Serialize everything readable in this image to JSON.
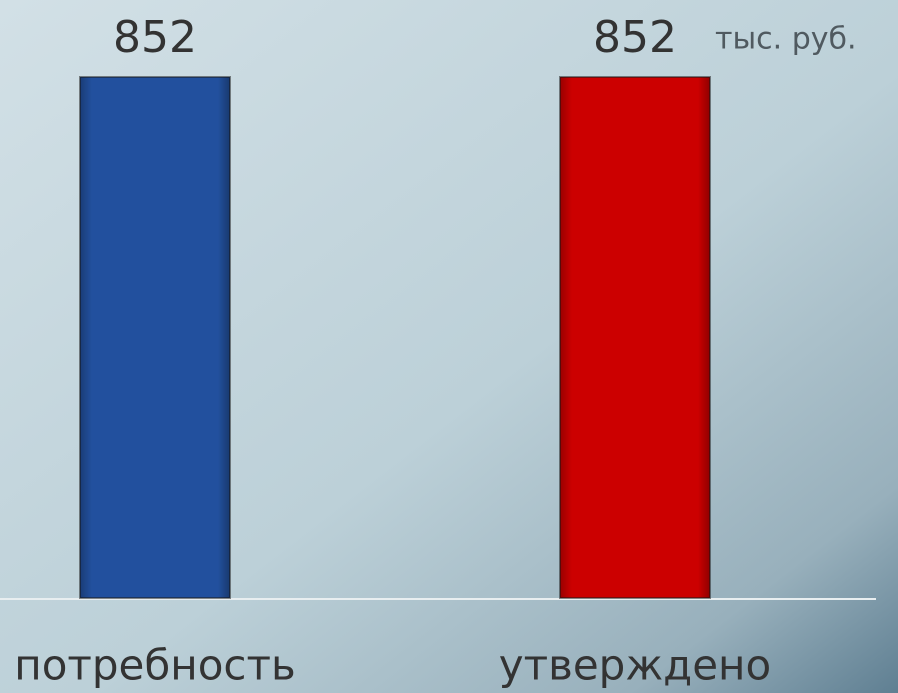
{
  "chart_data": {
    "type": "bar",
    "unit": "тыс. руб.",
    "categories": [
      "потребность",
      "утверждено"
    ],
    "values": [
      852,
      852
    ],
    "colors": [
      "#22509e",
      "#cc0000"
    ],
    "ylim": [
      0,
      852
    ]
  }
}
